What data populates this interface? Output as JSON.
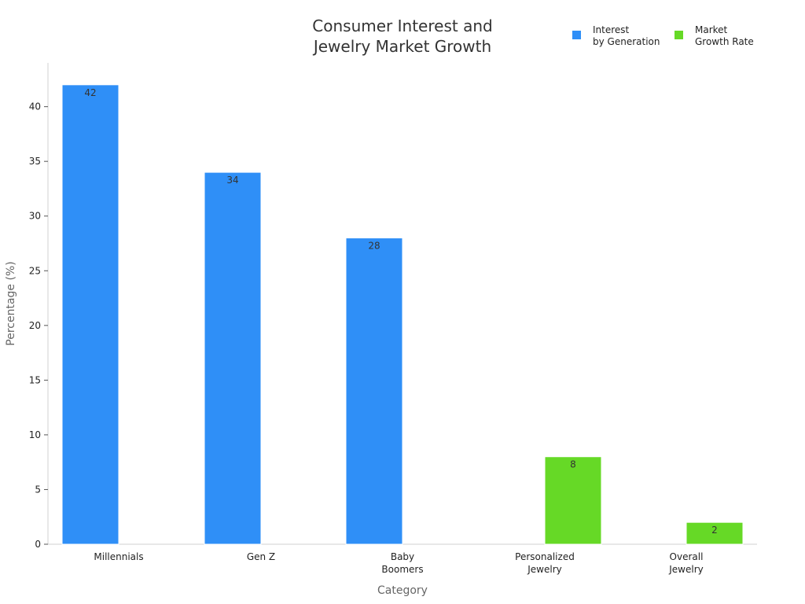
{
  "chart_data": {
    "type": "bar",
    "title": [
      "Consumer Interest and",
      "Jewelry Market Growth"
    ],
    "xlabel": "Category",
    "ylabel": "Percentage (%)",
    "ylim": [
      0,
      44
    ],
    "yticks": [
      0,
      5,
      10,
      15,
      20,
      25,
      30,
      35,
      40
    ],
    "grid": false,
    "legend_position": "top-right",
    "categories": [
      [
        "Millennials"
      ],
      [
        "Gen Z"
      ],
      [
        "Baby",
        "Boomers"
      ],
      [
        "Personalized",
        "Jewelry"
      ],
      [
        "Overall",
        "Jewelry"
      ]
    ],
    "series": [
      {
        "name": [
          "Interest",
          "by Generation"
        ],
        "color": "#2f8ff7",
        "values": [
          42,
          34,
          28,
          null,
          null
        ]
      },
      {
        "name": [
          "Market",
          "Growth Rate"
        ],
        "color": "#66d926",
        "values": [
          null,
          null,
          null,
          8,
          2
        ]
      }
    ]
  }
}
